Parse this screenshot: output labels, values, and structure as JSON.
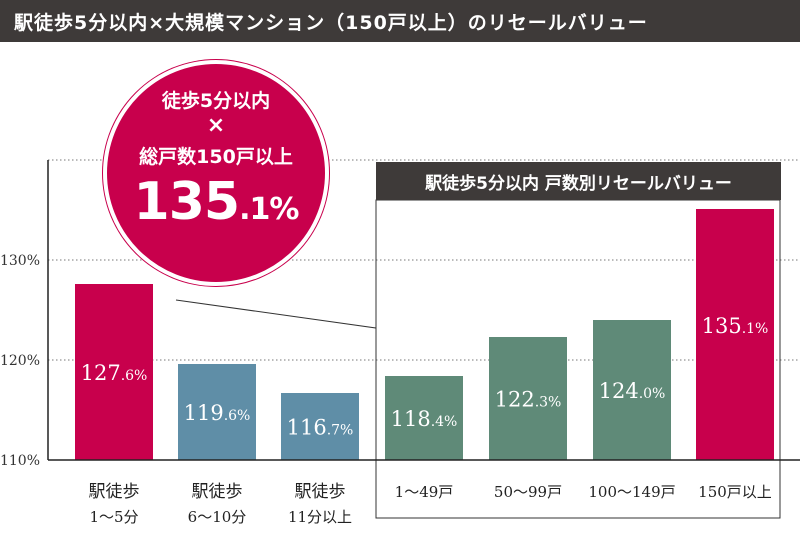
{
  "header": {
    "title": "駅徒歩5分以内×大規模マンション（150戸以上）のリセールバリュー"
  },
  "badge": {
    "line1": "徒歩5分以内",
    "line2": "×",
    "line3": "総戸数150戸以上",
    "value_main": "135",
    "value_small": ".1%"
  },
  "inset": {
    "title": "駅徒歩5分以内 戸数別リセールバリュー"
  },
  "colors": {
    "crimson": "#c8004c",
    "steel_blue": "#5f8ea7",
    "sage_green": "#5f8a78",
    "dark": "#3e3a39"
  },
  "chart_data": {
    "type": "bar",
    "y_ticks": [
      "110%",
      "120%",
      "130%"
    ],
    "ylim": [
      110,
      140
    ],
    "grid": "dotted horizontal",
    "bars": [
      {
        "label": [
          "駅徒歩",
          "1〜5分"
        ],
        "value": 127.6,
        "value_label": [
          "127",
          ".6%"
        ],
        "color": "#c8004c",
        "group": "distance"
      },
      {
        "label": [
          "駅徒歩",
          "6〜10分"
        ],
        "value": 119.6,
        "value_label": [
          "119",
          ".6%"
        ],
        "color": "#5f8ea7",
        "group": "distance"
      },
      {
        "label": [
          "駅徒歩",
          "11分以上"
        ],
        "value": 116.7,
        "value_label": [
          "116",
          ".7%"
        ],
        "color": "#5f8ea7",
        "group": "distance"
      },
      {
        "label": [
          "1〜49戸"
        ],
        "value": 118.4,
        "value_label": [
          "118",
          ".4%"
        ],
        "color": "#5f8a78",
        "group": "units"
      },
      {
        "label": [
          "50〜99戸"
        ],
        "value": 122.3,
        "value_label": [
          "122",
          ".3%"
        ],
        "color": "#5f8a78",
        "group": "units"
      },
      {
        "label": [
          "100〜149戸"
        ],
        "value": 124.0,
        "value_label": [
          "124",
          ".0%"
        ],
        "color": "#5f8a78",
        "group": "units"
      },
      {
        "label": [
          "150戸以上"
        ],
        "value": 135.1,
        "value_label": [
          "135",
          ".1%"
        ],
        "color": "#c8004c",
        "group": "units"
      }
    ]
  }
}
